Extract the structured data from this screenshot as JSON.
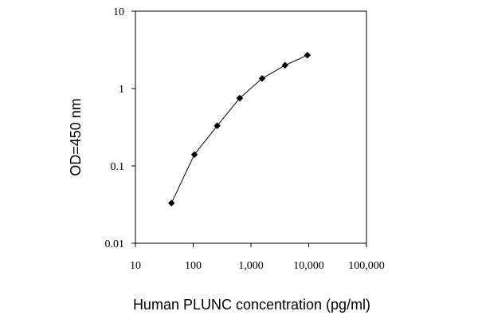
{
  "chart_data": {
    "type": "line",
    "title": "",
    "xlabel": "Human PLUNC concentration (pg/ml)",
    "ylabel": "OD=450 nm",
    "x_scale": "log",
    "y_scale": "log",
    "xlim": [
      10,
      100000
    ],
    "ylim": [
      0.01,
      10
    ],
    "x_ticks": [
      10,
      100,
      1000,
      10000,
      100000
    ],
    "x_tick_labels": [
      "10",
      "100",
      "1,000",
      "10,000",
      "100,000"
    ],
    "y_ticks": [
      0.01,
      0.1,
      1,
      10
    ],
    "y_tick_labels": [
      "0.01",
      "0.1",
      "1",
      "10"
    ],
    "grid": false,
    "legend": "none",
    "series": [
      {
        "marker": "diamond",
        "color": "#000000",
        "x": [
          42,
          105,
          260,
          640,
          1560,
          3900,
          9500
        ],
        "y": [
          0.033,
          0.14,
          0.33,
          0.75,
          1.35,
          2.0,
          2.7
        ]
      }
    ]
  }
}
